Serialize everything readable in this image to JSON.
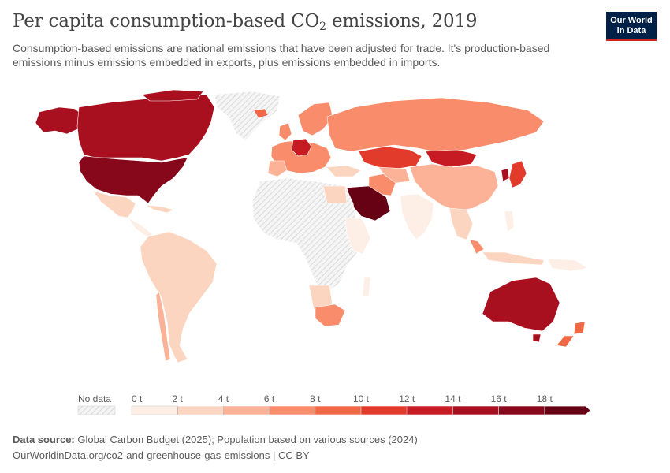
{
  "header": {
    "title_main": "Per capita consumption-based CO",
    "title_sub": "2",
    "title_rest": " emissions, 2019",
    "subtitle": "Consumption-based emissions are national emissions that have been adjusted for trade. It's production-based emissions minus emissions embedded in exports, plus emissions embedded in imports."
  },
  "logo": {
    "line1": "Our World",
    "line2": "in Data"
  },
  "legend": {
    "no_data_label": "No data",
    "tick_labels": [
      "0 t",
      "2 t",
      "4 t",
      "6 t",
      "8 t",
      "10 t",
      "12 t",
      "14 t",
      "16 t",
      "18 t"
    ],
    "bins": [
      {
        "from": 0,
        "to": 2,
        "color": "#fdeee6"
      },
      {
        "from": 2,
        "to": 4,
        "color": "#fcd5c1"
      },
      {
        "from": 4,
        "to": 6,
        "color": "#fbb296"
      },
      {
        "from": 6,
        "to": 8,
        "color": "#f98c6b"
      },
      {
        "from": 8,
        "to": 10,
        "color": "#f06846"
      },
      {
        "from": 10,
        "to": 12,
        "color": "#e23b2b"
      },
      {
        "from": 12,
        "to": 14,
        "color": "#c61b22"
      },
      {
        "from": 14,
        "to": 16,
        "color": "#a9101f"
      },
      {
        "from": 16,
        "to": 18,
        "color": "#87081a"
      },
      {
        "from": 18,
        "to": null,
        "color": "#660214"
      }
    ]
  },
  "footer": {
    "source_label": "Data source:",
    "source_text": " Global Carbon Budget (2025); Population based on various sources (2024)",
    "url": "OurWorldinData.org/co2-and-greenhouse-gas-emissions",
    "license": " | CC BY"
  },
  "map_regions": [
    {
      "name": "Canada",
      "color": "#a9101f"
    },
    {
      "name": "United States",
      "color": "#87081a"
    },
    {
      "name": "Alaska",
      "color": "#a9101f"
    },
    {
      "name": "Greenland",
      "color": "no-data"
    },
    {
      "name": "Mexico",
      "color": "#fcd5c1"
    },
    {
      "name": "South America",
      "color": "#fcd5c1"
    },
    {
      "name": "Chile",
      "color": "#fbb296"
    },
    {
      "name": "Russia",
      "color": "#f98c6b"
    },
    {
      "name": "Kazakhstan",
      "color": "#e23b2b"
    },
    {
      "name": "Mongolia",
      "color": "#c61b22"
    },
    {
      "name": "China",
      "color": "#fbb296"
    },
    {
      "name": "India",
      "color": "#fdeee6"
    },
    {
      "name": "Saudi Arabia",
      "color": "#660214"
    },
    {
      "name": "Iran",
      "color": "#f98c6b"
    },
    {
      "name": "Australia",
      "color": "#a9101f"
    },
    {
      "name": "New Zealand",
      "color": "#f06846"
    },
    {
      "name": "South Africa",
      "color": "#f98c6b"
    },
    {
      "name": "Japan",
      "color": "#e23b2b"
    },
    {
      "name": "South Korea",
      "color": "#a9101f"
    },
    {
      "name": "Europe",
      "color": "#f98c6b"
    },
    {
      "name": "Africa",
      "color": "no-data"
    }
  ]
}
